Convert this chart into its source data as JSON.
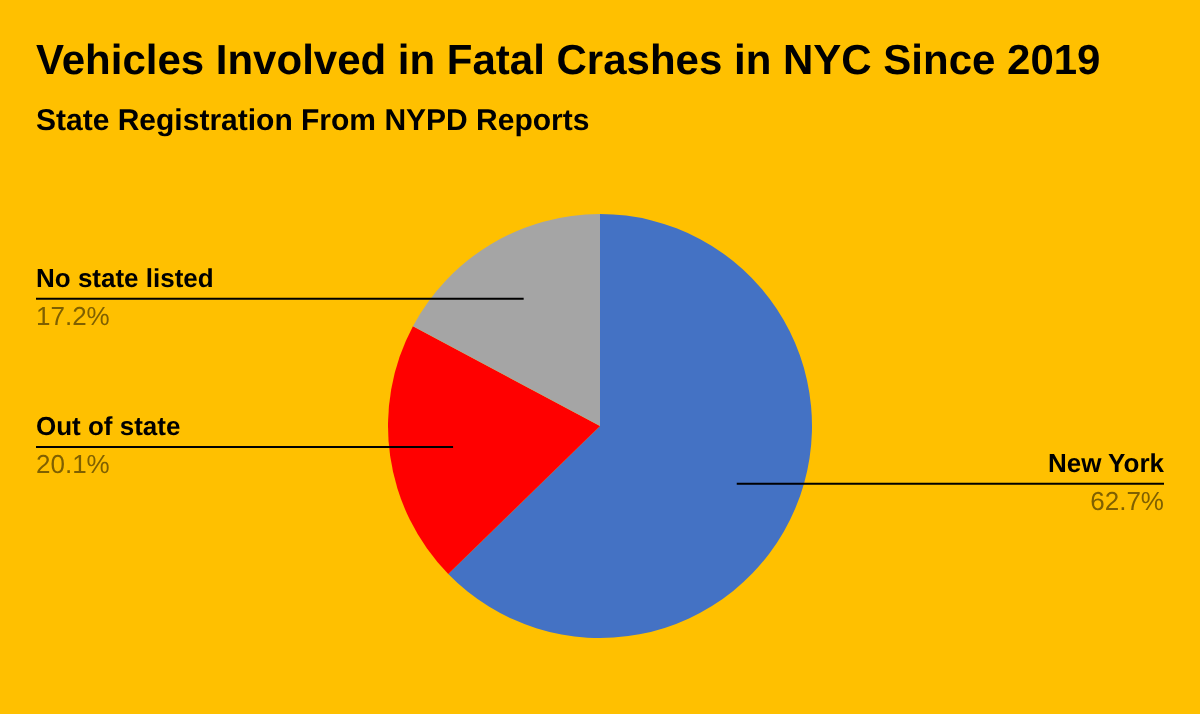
{
  "chart_data": {
    "type": "pie",
    "title": "Vehicles Involved in Fatal Crashes in NYC Since 2019",
    "subtitle": "State Registration From NYPD Reports",
    "categories": [
      "New York",
      "Out of state",
      "No state listed"
    ],
    "values": [
      62.7,
      20.1,
      17.2
    ],
    "colors": [
      "#4472c4",
      "#ff0000",
      "#a5a5a5"
    ],
    "value_labels": [
      "62.7%",
      "20.1%",
      "17.2%"
    ]
  }
}
